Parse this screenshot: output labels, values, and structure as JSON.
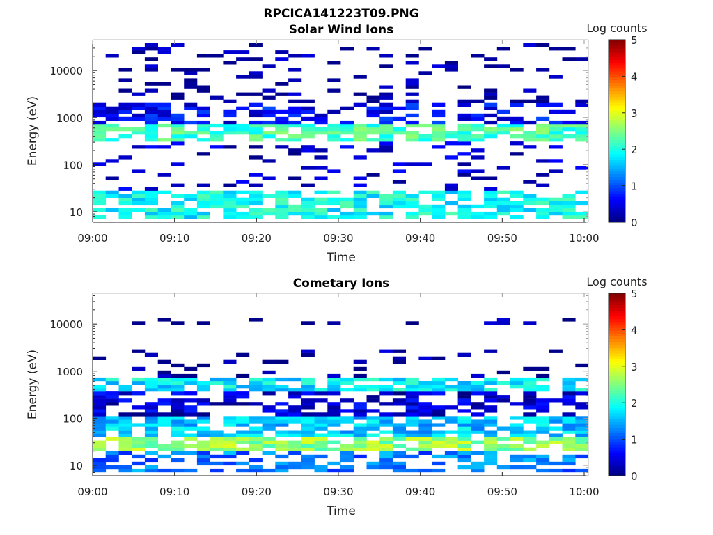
{
  "figure": {
    "title": "RPCICA141223T09.PNG"
  },
  "chart_data": [
    {
      "type": "heatmap",
      "title": "Solar Wind Ions",
      "xlabel": "Time",
      "ylabel": "Energy (eV)",
      "x_ticks": [
        "09:00",
        "09:10",
        "09:20",
        "09:30",
        "09:40",
        "09:50",
        "10:00"
      ],
      "y_ticks": [
        "10",
        "100",
        "1000",
        "10000"
      ],
      "yscale": "log",
      "ylim": [
        6,
        45000
      ],
      "colorbar": {
        "label": "Log counts",
        "ticks": [
          "0",
          "1",
          "2",
          "3",
          "4",
          "5"
        ],
        "range": [
          0,
          5
        ]
      },
      "bands": [
        {
          "energy_range": [
            7,
            30
          ],
          "level": 1.9
        },
        {
          "energy_range": [
            30,
            300
          ],
          "level": 0.3
        },
        {
          "energy_range": [
            300,
            700
          ],
          "level": 2.2
        },
        {
          "energy_range": [
            700,
            2000
          ],
          "level": 0.6
        },
        {
          "energy_range": [
            2000,
            40000
          ],
          "level": 0.1
        }
      ]
    },
    {
      "type": "heatmap",
      "title": "Cometary Ions",
      "xlabel": "Time",
      "ylabel": "Energy (eV)",
      "x_ticks": [
        "09:00",
        "09:10",
        "09:20",
        "09:30",
        "09:40",
        "09:50",
        "10:00"
      ],
      "y_ticks": [
        "10",
        "100",
        "1000",
        "10000"
      ],
      "yscale": "log",
      "ylim": [
        6,
        45000
      ],
      "colorbar": {
        "label": "Log counts",
        "ticks": [
          "0",
          "1",
          "2",
          "3",
          "4",
          "5"
        ],
        "range": [
          0,
          5
        ]
      },
      "bands": [
        {
          "energy_range": [
            7,
            20
          ],
          "level": 1.2
        },
        {
          "energy_range": [
            20,
            40
          ],
          "level": 2.6
        },
        {
          "energy_range": [
            40,
            120
          ],
          "level": 1.6
        },
        {
          "energy_range": [
            120,
            400
          ],
          "level": 0.4
        },
        {
          "energy_range": [
            400,
            700
          ],
          "level": 1.8
        },
        {
          "energy_range": [
            700,
            3000
          ],
          "level": 0.1
        },
        {
          "energy_range": [
            9000,
            14000
          ],
          "level": 0.1
        }
      ]
    }
  ]
}
